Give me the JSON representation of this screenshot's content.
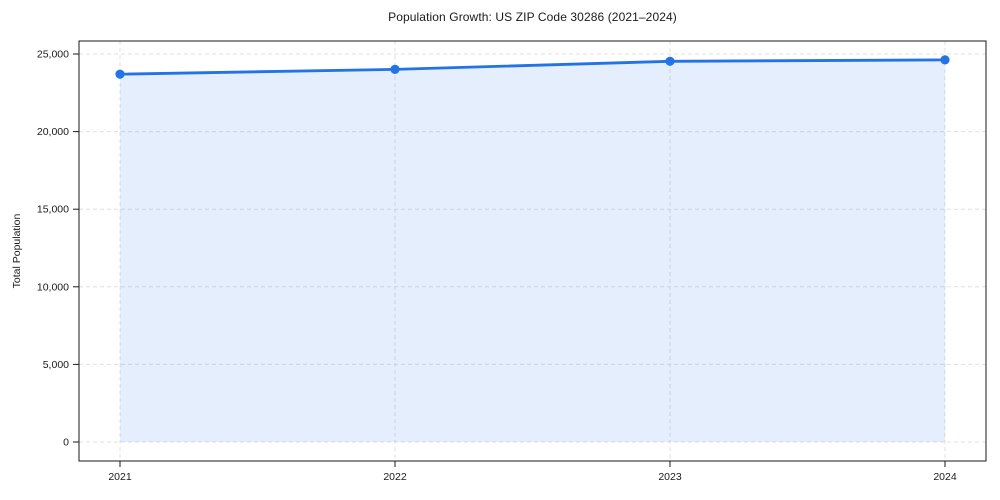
{
  "figure": {
    "background": "#ffffff"
  },
  "chart_data": {
    "type": "line",
    "title": "Population Growth: US ZIP Code 30286 (2021–2024)",
    "xlabel": "",
    "ylabel": "Total Population",
    "x": [
      2021,
      2022,
      2023,
      2024
    ],
    "xtick_labels": [
      "2021",
      "2022",
      "2023",
      "2024"
    ],
    "series": [
      {
        "name": "Total Population",
        "values": [
          23700,
          24010,
          24530,
          24620
        ]
      }
    ],
    "ylim": [
      0,
      25000
    ],
    "yticks": [
      0,
      5000,
      10000,
      15000,
      20000,
      25000
    ],
    "ytick_labels": [
      "0",
      "5,000",
      "10,000",
      "15,000",
      "20,000",
      "25,000"
    ],
    "grid": "dashed, both axes, at ticks",
    "legend": "none",
    "marker": "circle",
    "area_fill_below_line": true,
    "colors": {
      "line": "#2273e6",
      "marker": "#2273e6",
      "fill": "#2273e6",
      "fill_opacity": 0.12,
      "grid": "#e0e0e0",
      "spine": "#1a1a1a",
      "text": "#1a1a1a"
    }
  }
}
